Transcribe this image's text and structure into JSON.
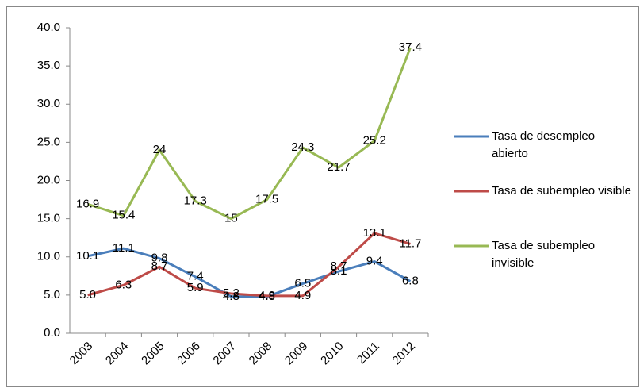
{
  "chart_data": {
    "type": "line",
    "categories": [
      "2003",
      "2004",
      "2005",
      "2006",
      "2007",
      "2008",
      "2009",
      "2010",
      "2011",
      "2012"
    ],
    "series": [
      {
        "name": "Tasa de desempleo abierto",
        "color": "#4a7ebb",
        "values": [
          10.1,
          11.1,
          9.8,
          7.4,
          4.8,
          4.8,
          6.5,
          8.1,
          9.4,
          6.8
        ],
        "value_labels": [
          "10.1",
          "11.1",
          "9.8",
          "7.4",
          "4.8",
          "4.8",
          "6.5",
          "8.1",
          "9.4",
          "6.8"
        ]
      },
      {
        "name": "Tasa de subempleo visible",
        "color": "#be4b48",
        "values": [
          5.0,
          6.3,
          8.7,
          5.9,
          5.2,
          4.9,
          4.9,
          8.7,
          13.1,
          11.7
        ],
        "value_labels": [
          "5.0",
          "6.3",
          "8.7",
          "5.9",
          "5.2",
          "4.9",
          "4.9",
          "8.7",
          "13.1",
          "11.7"
        ]
      },
      {
        "name": "Tasa de subempleo invisible",
        "color": "#98b954",
        "values": [
          16.9,
          15.4,
          24,
          17.3,
          15,
          17.5,
          24.3,
          21.7,
          25.2,
          37.4
        ],
        "value_labels": [
          "16.9",
          "15.4",
          "24",
          "17.3",
          "15",
          "17.5",
          "24.3",
          "21.7",
          "25.2",
          "37.4"
        ]
      }
    ],
    "ylim": [
      0,
      40
    ],
    "yticks": [
      {
        "value": 0,
        "label": "0.0"
      },
      {
        "value": 5,
        "label": "5.0"
      },
      {
        "value": 10,
        "label": "10.0"
      },
      {
        "value": 15,
        "label": "15.0"
      },
      {
        "value": 20,
        "label": "20.0"
      },
      {
        "value": 25,
        "label": "25.0"
      },
      {
        "value": 30,
        "label": "30.0"
      },
      {
        "value": 35,
        "label": "35.0"
      },
      {
        "value": 40,
        "label": "40.0"
      }
    ],
    "grid": false,
    "legend": "right"
  }
}
